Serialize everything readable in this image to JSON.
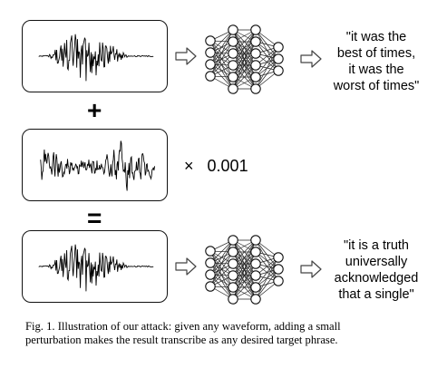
{
  "operators": {
    "plus": "+",
    "equals": "="
  },
  "scale": {
    "times": "×",
    "value": "0.001"
  },
  "output_top": [
    "\"it was the",
    "best of times,",
    "it was the",
    "worst of times\""
  ],
  "output_bottom": [
    "\"it is a truth",
    "universally",
    "acknowledged",
    "that a single\""
  ],
  "caption": {
    "line1": "Fig. 1.   Illustration of our attack: given any waveform, adding a small",
    "line2": "perturbation makes the result transcribe as any desired target phrase."
  },
  "icons": {
    "arrow": "hollow-right-arrow-icon",
    "network": "neural-network-icon"
  }
}
